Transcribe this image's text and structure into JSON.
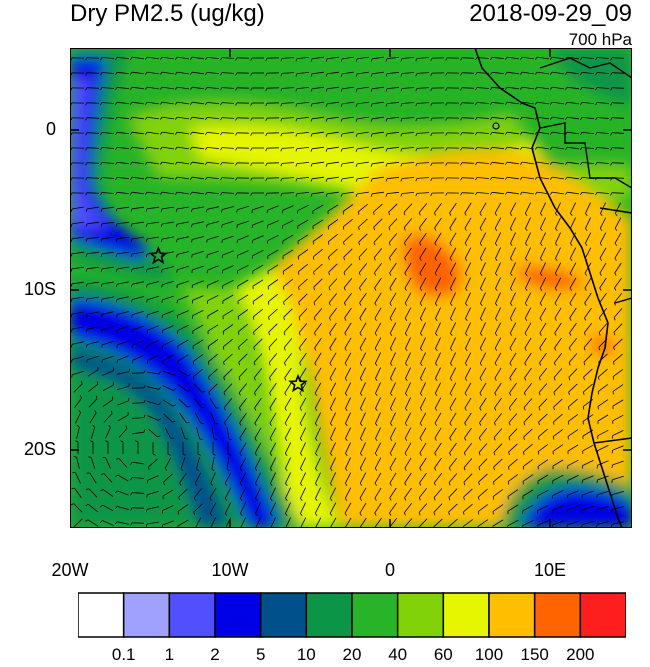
{
  "header": {
    "title": "Dry PM2.5 (ug/kg)",
    "datetime": "2018-09-29_09",
    "level": "700 hPa"
  },
  "map": {
    "lat_labels": [
      "0",
      "10S",
      "20S"
    ],
    "lon_labels": [
      "20W",
      "10W",
      "0",
      "10E"
    ],
    "extent": {
      "lon": [
        -20,
        15
      ],
      "lat": [
        -25,
        5
      ]
    },
    "markers": [
      {
        "lon": -14.5,
        "lat": -8,
        "symbol": "star"
      },
      {
        "lon": -5.8,
        "lat": -16,
        "symbol": "star"
      }
    ]
  },
  "legend": {
    "colors": [
      "#ffffff",
      "#a0a0ff",
      "#5050ff",
      "#0000e6",
      "#00508c",
      "#0a9646",
      "#28b428",
      "#82d20a",
      "#e6f500",
      "#ffbe00",
      "#ff6400",
      "#ff1e1e"
    ],
    "labels": [
      "0.1",
      "1",
      "2",
      "5",
      "10",
      "20",
      "40",
      "60",
      "100",
      "150",
      "200"
    ]
  }
}
